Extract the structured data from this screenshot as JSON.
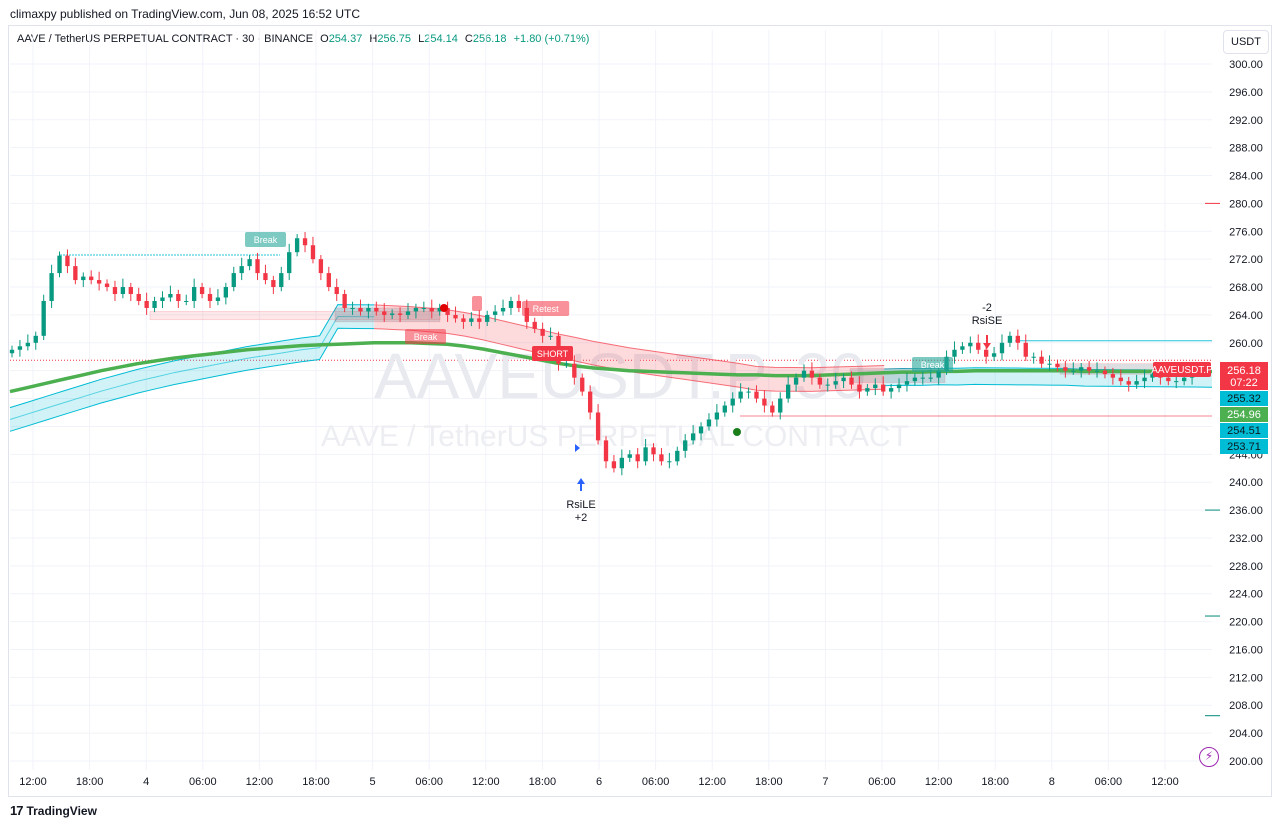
{
  "header": {
    "publish_line": "climaxpy published on TradingView.com, Jun 08, 2025 16:52 UTC"
  },
  "legend": {
    "symbol": "AAVE / TetherUS PERPETUAL CONTRACT · 30 · BINANCE",
    "open_label": "O",
    "open": "254.37",
    "high_label": "H",
    "high": "256.75",
    "low_label": "L",
    "low": "254.14",
    "close_label": "C",
    "close": "256.18",
    "change": "+1.80 (+0.71%)"
  },
  "currency_button": "USDT",
  "watermark": {
    "ticker": "AAVEUSDT.P, 30",
    "description": "AAVE / TetherUS PERPETUAL CONTRACT"
  },
  "footer": {
    "brand": "TradingView"
  },
  "colors": {
    "up": "#089981",
    "down": "#f23645",
    "ema": "#4caf50",
    "band_cyan": "#00bcd4",
    "band_red": "#f23645",
    "grid": "#f0f3fa"
  },
  "chart_data": {
    "type": "candlestick",
    "symbol": "AAVEUSDT.P",
    "timeframe": "30",
    "ylim": [
      200,
      302
    ],
    "y_ticks": [
      "300.00",
      "296.00",
      "292.00",
      "288.00",
      "284.00",
      "280.00",
      "276.00",
      "272.00",
      "268.00",
      "264.00",
      "260.00",
      "244.00",
      "240.00",
      "236.00",
      "232.00",
      "228.00",
      "224.00",
      "220.00",
      "216.00",
      "212.00",
      "208.00",
      "204.00",
      "200.00"
    ],
    "x_ticks": [
      "12:00",
      "18:00",
      "4",
      "06:00",
      "12:00",
      "18:00",
      "5",
      "06:00",
      "12:00",
      "18:00",
      "6",
      "06:00",
      "12:00",
      "18:00",
      "7",
      "06:00",
      "12:00",
      "18:00",
      "8",
      "06:00",
      "12:00"
    ],
    "price_tags": [
      {
        "value": "256.18",
        "sub": "07:22",
        "name": "AAVEUSDT.P",
        "color": "#f23645"
      },
      {
        "value": "255.32",
        "color": "#00bcd4"
      },
      {
        "value": "254.96",
        "color": "#4caf50"
      },
      {
        "value": "254.51",
        "color": "#00bcd4"
      },
      {
        "value": "253.71",
        "color": "#00bcd4"
      }
    ],
    "close_series": [
      259,
      259.5,
      260,
      261,
      266,
      270,
      272.5,
      271,
      269,
      269.5,
      269,
      268.5,
      268,
      267,
      268,
      267,
      266,
      265,
      266,
      266.5,
      267,
      266,
      266,
      268,
      267,
      266,
      266.5,
      268,
      270,
      271,
      272,
      270,
      269,
      268,
      270,
      273,
      275,
      274,
      272,
      270,
      268,
      267,
      265,
      265,
      264.5,
      265,
      264.5,
      264,
      264.2,
      264,
      264.5,
      265,
      265,
      264.5,
      265,
      264,
      263.5,
      263,
      263.5,
      263,
      264,
      264.5,
      265,
      266,
      265,
      263,
      262,
      261,
      261,
      257,
      257,
      255,
      253,
      250,
      246,
      243,
      242,
      243.5,
      244,
      243,
      245,
      244,
      243,
      243,
      244.5,
      246,
      247,
      248,
      249,
      250,
      251,
      252,
      253,
      253,
      252,
      251,
      250,
      252,
      254,
      255,
      256,
      255,
      254,
      254,
      254.5,
      255,
      254,
      253,
      253.5,
      254,
      253,
      253.5,
      254,
      254.5,
      255,
      255,
      255,
      256,
      258,
      259,
      259.5,
      260,
      259,
      258,
      258.5,
      260,
      261,
      260,
      258,
      258,
      257,
      257,
      256.5,
      256,
      256,
      256.5,
      256,
      256,
      255.5,
      255,
      254.5,
      254,
      254.5,
      255,
      255.5,
      255,
      254.5,
      254.5,
      255,
      256,
      256.18
    ],
    "ema_series": [
      253,
      253.6,
      254.2,
      254.8,
      255.4,
      256.0,
      256.5,
      257.0,
      257.4,
      257.8,
      258.1,
      258.4,
      258.7,
      259.0,
      259.2,
      259.4,
      259.6,
      259.7,
      259.8,
      259.9,
      260.0,
      260.0,
      260.0,
      259.9,
      259.8,
      259.5,
      259.1,
      258.6,
      258.1,
      257.6,
      257.1,
      256.7,
      256.4,
      256.2,
      256.0,
      255.9,
      255.8,
      255.7,
      255.6,
      255.5,
      255.4,
      255.4,
      255.3,
      255.3,
      255.3,
      255.4,
      255.5,
      255.6,
      255.7,
      255.8,
      255.8,
      255.9,
      255.9,
      256.0,
      256.0,
      256.0,
      256.0,
      256.0,
      256.0,
      255.9,
      255.9,
      255.9,
      255.9,
      255.9,
      255.9,
      255.9,
      255.9
    ],
    "signals": [
      {
        "label": "Break",
        "kind": "tag_green"
      },
      {
        "label": "Break",
        "kind": "tag_red"
      },
      {
        "label": "Retest",
        "kind": "tag_red"
      },
      {
        "label": "SHORT",
        "kind": "tag_short"
      },
      {
        "label": "Break",
        "kind": "tag_green"
      },
      {
        "label": "RsiLE",
        "qty": "+2",
        "kind": "long_entry"
      },
      {
        "label": "RsiSE",
        "qty": "-2",
        "kind": "short_entry"
      }
    ]
  }
}
